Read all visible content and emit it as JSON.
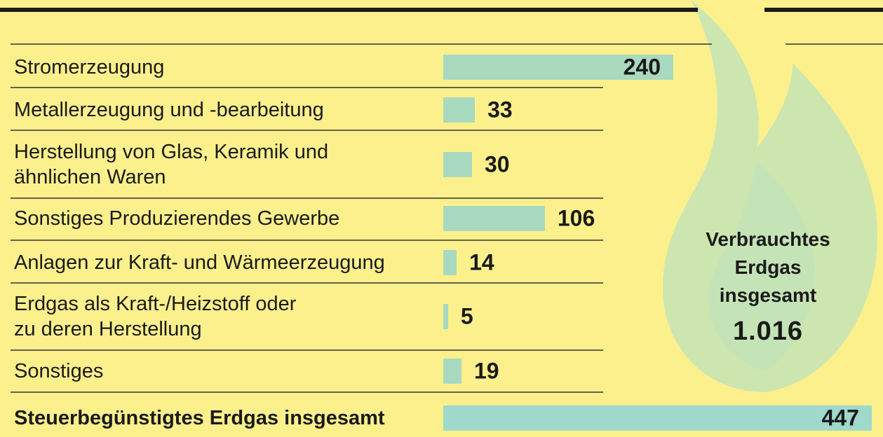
{
  "chart_data": {
    "type": "bar",
    "categories": [
      "Stromerzeugung",
      "Metallerzeugung und -bearbeitung",
      "Herstellung von Glas, Keramik und\nähnlichen Waren",
      "Sonstiges Produzierendes Gewerbe",
      "Anlagen zur Kraft- und Wärmeerzeugung",
      "Erdgas als Kraft-/Heizstoff oder\nzu deren Herstellung",
      "Sonstiges"
    ],
    "values": [
      240,
      33,
      30,
      106,
      14,
      5,
      19
    ],
    "color": "#a9d9bf",
    "total": {
      "label": "Steuerbegünstigtes Erdgas insgesamt",
      "value": 447,
      "color": "#9fd9cc"
    },
    "annotation": {
      "text": "Verbrauchtes Erdgas insgesamt",
      "value": 1016,
      "value_label": "1.016"
    }
  }
}
